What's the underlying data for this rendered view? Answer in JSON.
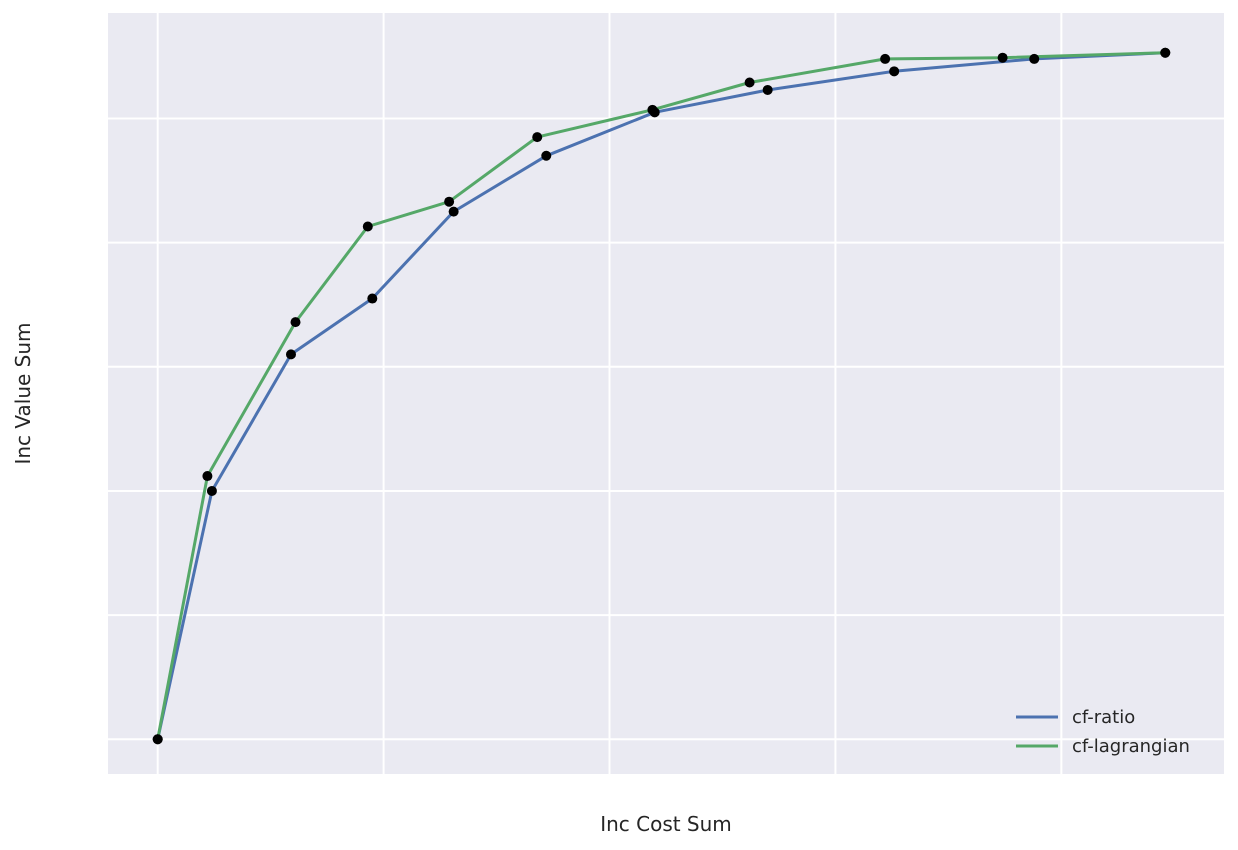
{
  "chart_data": {
    "type": "line",
    "title": "",
    "xlabel": "Inc Cost Sum",
    "ylabel": "Inc Value Sum",
    "grid": true,
    "tick_labels_shown": false,
    "xlim": [
      -0.22,
      4.72
    ],
    "ylim": [
      -0.28,
      5.85
    ],
    "xgrid": [
      0,
      1,
      2,
      3,
      4
    ],
    "ygrid": [
      0,
      1,
      2,
      3,
      4,
      5
    ],
    "legend_position": "bottom-right",
    "background_color": "#eaeaf2",
    "grid_color": "#ffffff",
    "marker_color": "#000000",
    "series": [
      {
        "name": "cf-ratio",
        "color": "#4c72b0",
        "x": [
          0.0,
          0.24,
          0.59,
          0.95,
          1.31,
          1.72,
          2.2,
          2.7,
          3.26,
          3.88,
          4.46
        ],
        "y": [
          0.0,
          2.0,
          3.1,
          3.55,
          4.25,
          4.7,
          5.05,
          5.23,
          5.38,
          5.48,
          5.53
        ]
      },
      {
        "name": "cf-lagrangian",
        "color": "#55a868",
        "x": [
          0.0,
          0.22,
          0.61,
          0.93,
          1.29,
          1.68,
          2.19,
          2.62,
          3.22,
          3.74,
          4.46
        ],
        "y": [
          0.0,
          2.12,
          3.36,
          4.13,
          4.33,
          4.85,
          5.07,
          5.29,
          5.48,
          5.49,
          5.53
        ]
      }
    ]
  }
}
